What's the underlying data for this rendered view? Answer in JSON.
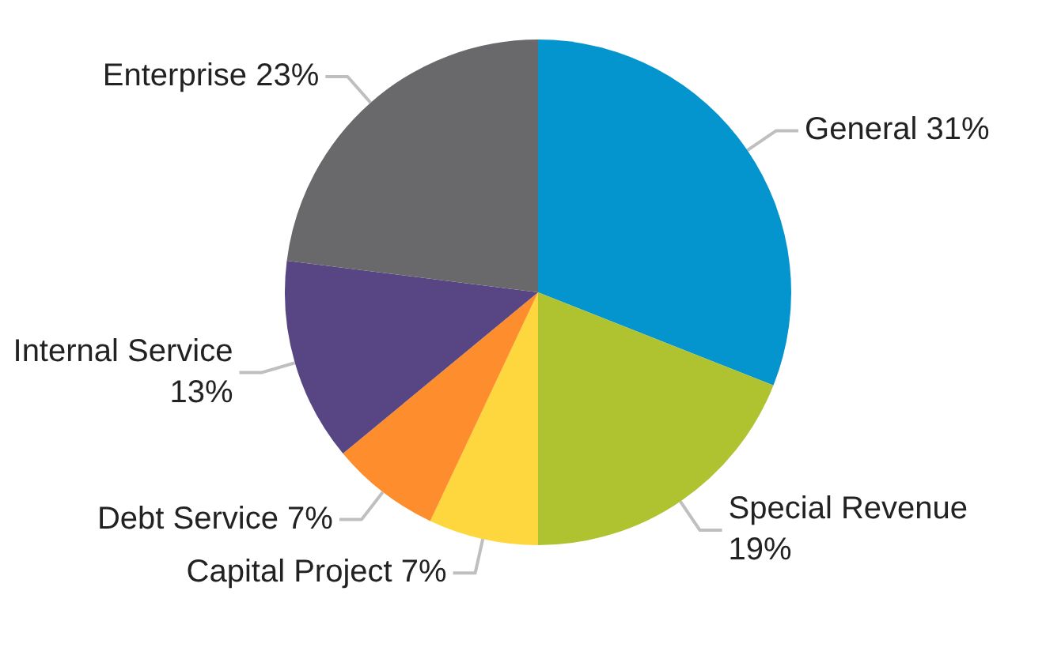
{
  "chart_data": {
    "type": "pie",
    "categories": [
      "General",
      "Special Revenue",
      "Capital Project",
      "Debt Service",
      "Internal Service",
      "Enterprise"
    ],
    "values": [
      31,
      19,
      7,
      7,
      13,
      23
    ],
    "value_labels": [
      "31%",
      "19%",
      "7%",
      "7%",
      "13%",
      "23%"
    ],
    "colors": [
      "#0595ce",
      "#afc22f",
      "#fdd73d",
      "#fd8d2d",
      "#574683",
      "#69696b"
    ],
    "legend": false
  }
}
